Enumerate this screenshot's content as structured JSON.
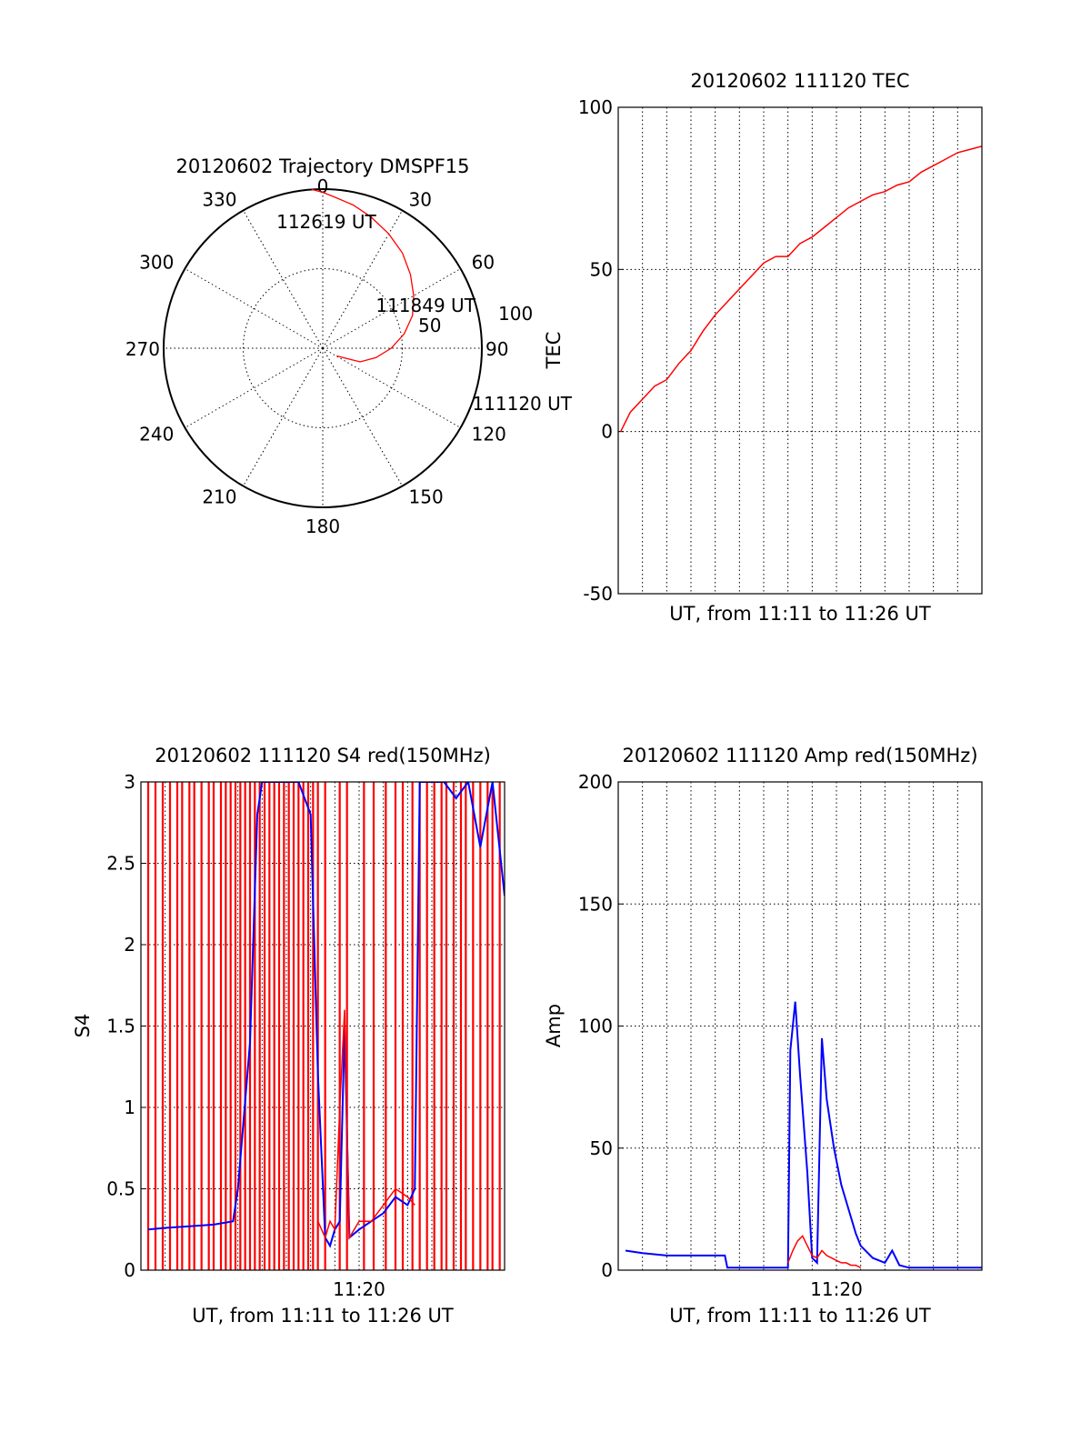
{
  "colors": {
    "red": "#ff0000",
    "blue": "#0000ff",
    "axis": "#000000"
  },
  "chart_data": [
    {
      "id": "trajectory",
      "type": "polar",
      "title": "20120602 Trajectory DMSPF15",
      "azimuth_labels": [
        "0",
        "30",
        "60",
        "90",
        "120",
        "150",
        "180",
        "210",
        "240",
        "270",
        "300",
        "330"
      ],
      "radial_labels": [
        "50",
        "100"
      ],
      "rlim": [
        0,
        100
      ],
      "series": [
        {
          "color": "red",
          "points": [
            [
              119,
              10
            ],
            [
              110,
              25
            ],
            [
              100,
              34
            ],
            [
              90,
              43
            ],
            [
              80,
              52
            ],
            [
              70,
              60
            ],
            [
              60,
              66
            ],
            [
              50,
              72
            ],
            [
              40,
              78
            ],
            [
              30,
              83
            ],
            [
              20,
              88
            ],
            [
              12,
              92
            ],
            [
              5,
              95
            ],
            [
              0,
              98
            ],
            [
              -4,
              100
            ]
          ]
        }
      ],
      "annotations": [
        {
          "text": "112619 UT",
          "az": -20,
          "r": 85
        },
        {
          "text": "111849 UT",
          "az": 60,
          "r": 55
        },
        {
          "text": "111120 UT",
          "az": 110,
          "r": 100
        }
      ]
    },
    {
      "id": "tec",
      "type": "line",
      "title": "20120602 111120 TEC",
      "xlabel": "UT, from 11:11 to 11:26 UT",
      "ylabel": "TEC",
      "ylim": [
        -50,
        100
      ],
      "yticks": [
        "-50",
        "0",
        "50",
        "100"
      ],
      "yticks_values": [
        -50,
        0,
        50,
        100
      ],
      "xlim": [
        0,
        15
      ],
      "x_tick_labels": [],
      "series": [
        {
          "color": "red",
          "x": [
            0.1,
            0.5,
            1.0,
            1.5,
            2.0,
            2.5,
            3.0,
            3.5,
            4.0,
            4.5,
            5.0,
            5.5,
            6.0,
            6.5,
            7.0,
            7.5,
            8.0,
            8.5,
            9.0,
            9.5,
            10.0,
            10.5,
            11.0,
            11.5,
            12.0,
            12.5,
            13.0,
            13.5,
            14.0,
            14.5,
            15.0
          ],
          "y": [
            0,
            6,
            10,
            14,
            16,
            21,
            25,
            31,
            36,
            40,
            44,
            48,
            52,
            54,
            54,
            58,
            60,
            63,
            66,
            69,
            71,
            73,
            74,
            76,
            77,
            80,
            82,
            84,
            86,
            87,
            88
          ]
        }
      ]
    },
    {
      "id": "s4",
      "type": "line",
      "title": "20120602 111120 S4 red(150MHz)",
      "xlabel": "UT, from 11:11 to 11:26 UT",
      "ylabel": "S4",
      "ylim": [
        0,
        3
      ],
      "yticks": [
        "0",
        "0.5",
        "1",
        "1.5",
        "2",
        "2.5",
        "3"
      ],
      "yticks_values": [
        0,
        0.5,
        1,
        1.5,
        2,
        2.5,
        3
      ],
      "xlim": [
        0,
        15
      ],
      "x_tick_labels": [
        {
          "x": 9,
          "label": "11:20"
        }
      ],
      "red_spike_x": [
        0.3,
        0.6,
        0.9,
        1.2,
        1.5,
        1.7,
        2.0,
        2.2,
        2.5,
        2.8,
        3.0,
        3.3,
        3.5,
        3.7,
        3.9,
        4.1,
        4.3,
        4.5,
        4.7,
        4.9,
        5.1,
        5.3,
        5.5,
        5.7,
        5.9,
        6.1,
        6.3,
        6.5,
        6.7,
        6.9,
        7.1,
        7.3,
        7.6,
        8.2,
        8.5,
        9.2,
        9.6,
        10.1,
        10.5,
        10.8,
        11.2,
        11.5,
        11.8,
        12.1,
        12.4,
        12.6,
        12.9,
        13.2,
        13.4,
        13.7,
        14.0,
        14.3,
        14.5,
        14.8
      ],
      "series": [
        {
          "color": "blue",
          "x": [
            0.3,
            1,
            2,
            3,
            3.8,
            4.0,
            4.5,
            4.8,
            5.0,
            5.5,
            6.0,
            6.5,
            7.0,
            7.3,
            7.6,
            7.8,
            8.0,
            8.2,
            8.4,
            8.6,
            9.0,
            9.5,
            10,
            10.5,
            11.0,
            11.3,
            11.5,
            11.7,
            12,
            12.5,
            13,
            13.5,
            14,
            14.5,
            15
          ],
          "y": [
            0.25,
            0.26,
            0.27,
            0.28,
            0.3,
            0.5,
            1.4,
            2.8,
            3.0,
            3.0,
            3.0,
            3.0,
            2.8,
            1.2,
            0.2,
            0.15,
            0.25,
            0.3,
            1.5,
            0.2,
            0.25,
            0.3,
            0.35,
            0.45,
            0.4,
            0.5,
            3.0,
            3.0,
            3.0,
            3.0,
            2.9,
            3.0,
            2.6,
            3.0,
            2.3
          ]
        },
        {
          "color": "red",
          "x": [
            7.3,
            7.6,
            7.8,
            8.0,
            8.2,
            8.4,
            8.6,
            9.0,
            9.5,
            10,
            10.5,
            11.0,
            11.3
          ],
          "y": [
            0.3,
            0.2,
            0.3,
            0.25,
            1.0,
            1.6,
            0.2,
            0.3,
            0.3,
            0.4,
            0.5,
            0.45,
            0.4
          ]
        }
      ]
    },
    {
      "id": "amp",
      "type": "line",
      "title": "20120602 111120 Amp red(150MHz)",
      "xlabel": "UT, from 11:11 to 11:26 UT",
      "ylabel": "Amp",
      "ylim": [
        0,
        200
      ],
      "yticks": [
        "0",
        "50",
        "100",
        "150",
        "200"
      ],
      "yticks_values": [
        0,
        50,
        100,
        150,
        200
      ],
      "xlim": [
        0,
        15
      ],
      "x_tick_labels": [
        {
          "x": 9,
          "label": "11:20"
        }
      ],
      "series": [
        {
          "color": "blue",
          "x": [
            0.3,
            1,
            2,
            3,
            4,
            4.4,
            4.5,
            5,
            6,
            6.8,
            7.0,
            7.1,
            7.3,
            7.5,
            7.8,
            8.0,
            8.2,
            8.4,
            8.6,
            8.9,
            9.2,
            9.5,
            9.8,
            10.0,
            10.5,
            11.0,
            11.3,
            11.6,
            12,
            13,
            14,
            15
          ],
          "y": [
            8,
            7,
            6,
            6,
            6,
            6,
            1,
            1,
            1,
            1,
            1,
            90,
            110,
            80,
            40,
            5,
            3,
            95,
            70,
            50,
            35,
            25,
            15,
            10,
            5,
            3,
            8,
            2,
            1,
            1,
            1,
            1
          ]
        },
        {
          "color": "red",
          "x": [
            7.0,
            7.2,
            7.4,
            7.6,
            7.8,
            8.0,
            8.2,
            8.4,
            8.6,
            8.8,
            9.0,
            9.2,
            9.4,
            9.6,
            9.8,
            10.0
          ],
          "y": [
            3,
            8,
            12,
            14,
            10,
            6,
            5,
            8,
            6,
            5,
            4,
            3,
            3,
            2,
            2,
            1
          ]
        }
      ]
    }
  ]
}
